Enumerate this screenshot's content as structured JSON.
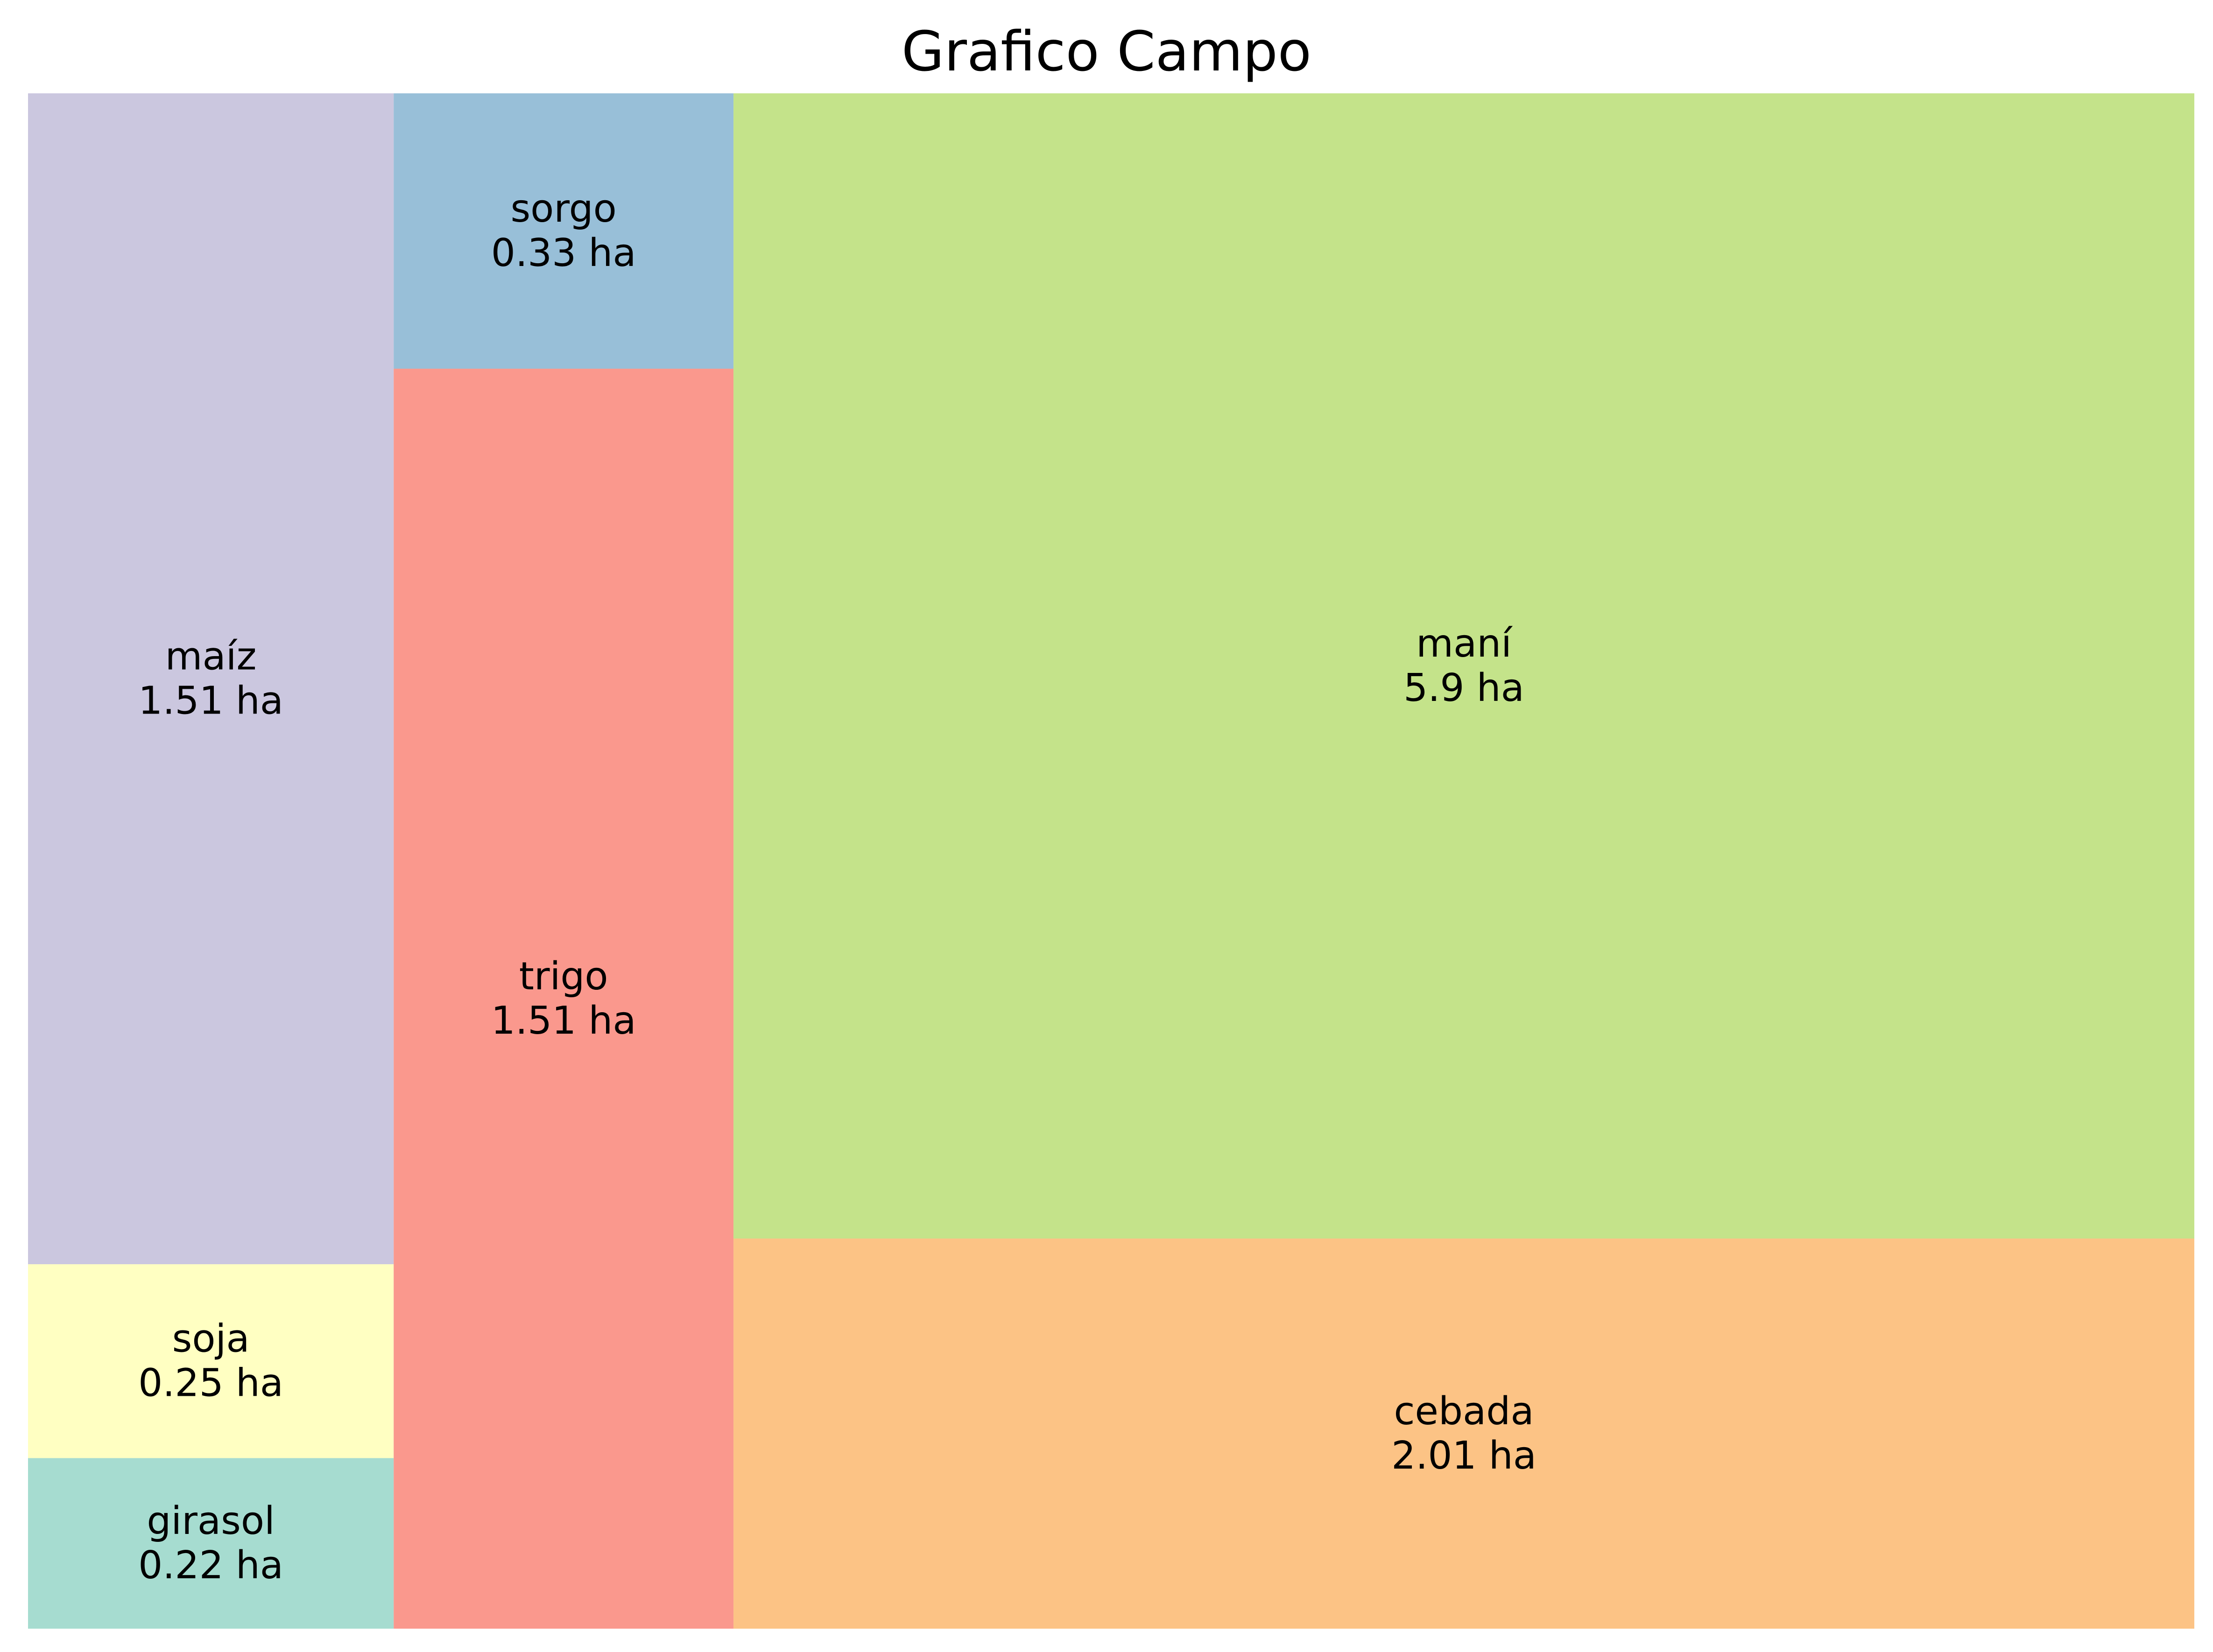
{
  "chart_data": {
    "type": "treemap",
    "title": "Grafico Campo",
    "unit": "ha",
    "items": [
      {
        "label": "girasol",
        "value": 0.22,
        "value_text": "0.22 ha",
        "color": "#a6dcd0"
      },
      {
        "label": "soja",
        "value": 0.25,
        "value_text": "0.25 ha",
        "color": "#ffffc2"
      },
      {
        "label": "maíz",
        "value": 1.51,
        "value_text": "1.51 ha",
        "color": "#cbc7df"
      },
      {
        "label": "trigo",
        "value": 1.51,
        "value_text": "1.51 ha",
        "color": "#fa988d"
      },
      {
        "label": "sorgo",
        "value": 0.33,
        "value_text": "0.33 ha",
        "color": "#98bfd8"
      },
      {
        "label": "cebada",
        "value": 2.01,
        "value_text": "2.01 ha",
        "color": "#fcc385"
      },
      {
        "label": "maní",
        "value": 5.9,
        "value_text": "5.9 ha",
        "color": "#c4e38a"
      }
    ]
  }
}
